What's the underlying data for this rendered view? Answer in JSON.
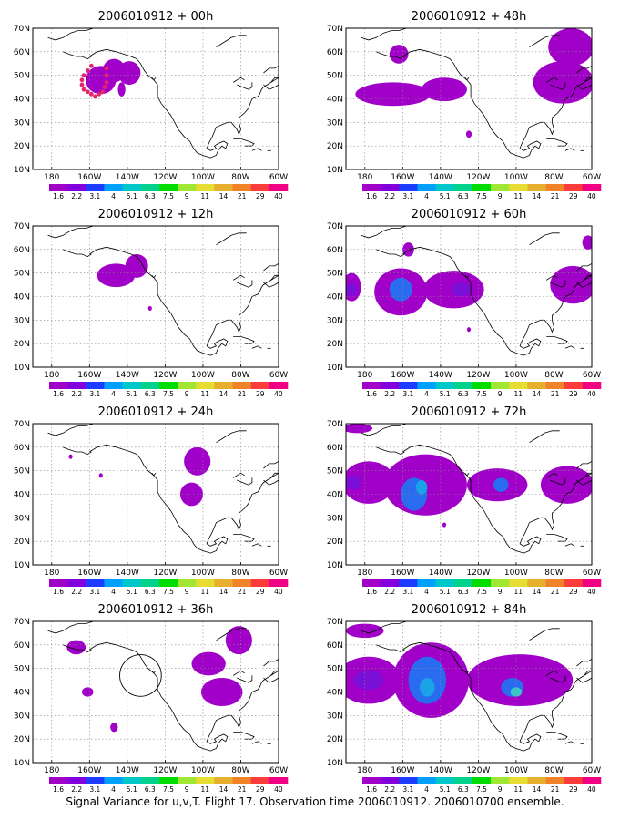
{
  "figure": {
    "caption": "Signal Variance for u,v,T. Flight 17. Observation time 2006010912. 2006010700 ensemble."
  },
  "colorbar": {
    "labels": [
      "1.6",
      "2.2",
      "3.1",
      "4",
      "5.1",
      "6.3",
      "7.5",
      "9",
      "11",
      "14",
      "21",
      "29",
      "40"
    ],
    "colors": [
      "#a000c8",
      "#8200dc",
      "#1e3cff",
      "#00a0ff",
      "#00c8c8",
      "#00d28c",
      "#00dc00",
      "#a0e632",
      "#e6dc32",
      "#e6af2d",
      "#f08228",
      "#fa3c3c",
      "#f00082"
    ]
  },
  "chart_data": [
    {
      "type": "heatmap",
      "title": "2006010912 + 00h",
      "xlim": [
        170,
        300
      ],
      "ylim": [
        10,
        70
      ],
      "x_ticks": [
        "180",
        "160W",
        "140W",
        "120W",
        "100W",
        "80W",
        "60W"
      ],
      "y_ticks": [
        "10N",
        "20N",
        "30N",
        "40N",
        "50N",
        "60N",
        "70N"
      ],
      "grid": true,
      "features": [
        {
          "lon": 206,
          "lat": 48,
          "rx": 8,
          "ry": 6,
          "level": 0
        },
        {
          "lon": 213,
          "lat": 52,
          "rx": 6,
          "ry": 5,
          "level": 0
        },
        {
          "lon": 221,
          "lat": 51,
          "rx": 6,
          "ry": 5,
          "level": 0
        },
        {
          "lon": 217,
          "lat": 44,
          "rx": 2,
          "ry": 3,
          "level": 0
        }
      ],
      "circles": [],
      "flight_track": [
        [
          201,
          54
        ],
        [
          199,
          52
        ],
        [
          197,
          50
        ],
        [
          196,
          48
        ],
        [
          196,
          46
        ],
        [
          197,
          44
        ],
        [
          199,
          43
        ],
        [
          201,
          42
        ],
        [
          203,
          41
        ],
        [
          205,
          42
        ],
        [
          207,
          43
        ],
        [
          208,
          45
        ],
        [
          209,
          47
        ],
        [
          209,
          50
        ],
        [
          209,
          53
        ]
      ]
    },
    {
      "type": "heatmap",
      "title": "2006010912 + 48h",
      "xlim": [
        170,
        300
      ],
      "ylim": [
        10,
        70
      ],
      "x_ticks": [
        "180",
        "160W",
        "140W",
        "120W",
        "100W",
        "80W",
        "60W"
      ],
      "y_ticks": [
        "10N",
        "20N",
        "30N",
        "40N",
        "50N",
        "60N",
        "70N"
      ],
      "grid": true,
      "features": [
        {
          "lon": 195,
          "lat": 42,
          "rx": 20,
          "ry": 5,
          "level": 0
        },
        {
          "lon": 222,
          "lat": 44,
          "rx": 12,
          "ry": 5,
          "level": 0
        },
        {
          "lon": 198,
          "lat": 59,
          "rx": 5,
          "ry": 4,
          "level": 0
        },
        {
          "lon": 235,
          "lat": 25,
          "rx": 1.5,
          "ry": 1.5,
          "level": 0
        },
        {
          "lon": 285,
          "lat": 47,
          "rx": 16,
          "ry": 9,
          "level": 0
        },
        {
          "lon": 289,
          "lat": 62,
          "rx": 12,
          "ry": 8,
          "level": 0
        }
      ],
      "circles": [],
      "flight_track": []
    },
    {
      "type": "heatmap",
      "title": "2006010912 + 12h",
      "xlim": [
        170,
        300
      ],
      "ylim": [
        10,
        70
      ],
      "x_ticks": [
        "180",
        "160W",
        "140W",
        "120W",
        "100W",
        "80W",
        "60W"
      ],
      "y_ticks": [
        "10N",
        "20N",
        "30N",
        "40N",
        "50N",
        "60N",
        "70N"
      ],
      "grid": true,
      "features": [
        {
          "lon": 214,
          "lat": 49,
          "rx": 10,
          "ry": 5,
          "level": 0
        },
        {
          "lon": 225,
          "lat": 53,
          "rx": 6,
          "ry": 5,
          "level": 0
        },
        {
          "lon": 232,
          "lat": 35,
          "rx": 1,
          "ry": 1,
          "level": 0
        }
      ],
      "circles": [],
      "flight_track": []
    },
    {
      "type": "heatmap",
      "title": "2006010912 + 60h",
      "xlim": [
        170,
        300
      ],
      "ylim": [
        10,
        70
      ],
      "x_ticks": [
        "180",
        "160W",
        "140W",
        "120W",
        "100W",
        "80W",
        "60W"
      ],
      "y_ticks": [
        "10N",
        "20N",
        "30N",
        "40N",
        "50N",
        "60N",
        "70N"
      ],
      "grid": true,
      "features": [
        {
          "lon": 199,
          "lat": 42,
          "rx": 14,
          "ry": 10,
          "level": 0
        },
        {
          "lon": 227,
          "lat": 43,
          "rx": 16,
          "ry": 8,
          "level": 0
        },
        {
          "lon": 173,
          "lat": 44,
          "rx": 5,
          "ry": 6,
          "level": 0
        },
        {
          "lon": 203,
          "lat": 60,
          "rx": 3,
          "ry": 3,
          "level": 0
        },
        {
          "lon": 290,
          "lat": 45,
          "rx": 12,
          "ry": 8,
          "level": 0
        },
        {
          "lon": 298,
          "lat": 63,
          "rx": 3,
          "ry": 3,
          "level": 0
        },
        {
          "lon": 235,
          "lat": 26,
          "rx": 1,
          "ry": 1,
          "level": 0
        },
        {
          "lon": 199,
          "lat": 43,
          "rx": 6,
          "ry": 5,
          "level": 2
        },
        {
          "lon": 173,
          "lat": 43,
          "rx": 3,
          "ry": 3,
          "level": 1
        },
        {
          "lon": 231,
          "lat": 43,
          "rx": 5,
          "ry": 3,
          "level": 1
        }
      ],
      "circles": [],
      "flight_track": []
    },
    {
      "type": "heatmap",
      "title": "2006010912 + 24h",
      "xlim": [
        170,
        300
      ],
      "ylim": [
        10,
        70
      ],
      "x_ticks": [
        "180",
        "160W",
        "140W",
        "120W",
        "100W",
        "80W",
        "60W"
      ],
      "y_ticks": [
        "10N",
        "20N",
        "30N",
        "40N",
        "50N",
        "60N",
        "70N"
      ],
      "grid": true,
      "features": [
        {
          "lon": 257,
          "lat": 54,
          "rx": 7,
          "ry": 6,
          "level": 0
        },
        {
          "lon": 254,
          "lat": 40,
          "rx": 6,
          "ry": 5,
          "level": 0
        },
        {
          "lon": 190,
          "lat": 56,
          "rx": 1,
          "ry": 1,
          "level": 0
        },
        {
          "lon": 206,
          "lat": 48,
          "rx": 1,
          "ry": 1,
          "level": 0
        }
      ],
      "circles": [],
      "flight_track": []
    },
    {
      "type": "heatmap",
      "title": "2006010912 + 72h",
      "xlim": [
        170,
        300
      ],
      "ylim": [
        10,
        70
      ],
      "x_ticks": [
        "180",
        "160W",
        "140W",
        "120W",
        "100W",
        "80W",
        "60W"
      ],
      "y_ticks": [
        "10N",
        "20N",
        "30N",
        "40N",
        "50N",
        "60N",
        "70N"
      ],
      "grid": true,
      "features": [
        {
          "lon": 182,
          "lat": 45,
          "rx": 14,
          "ry": 9,
          "level": 0
        },
        {
          "lon": 212,
          "lat": 44,
          "rx": 22,
          "ry": 13,
          "level": 0
        },
        {
          "lon": 250,
          "lat": 44,
          "rx": 16,
          "ry": 7,
          "level": 0
        },
        {
          "lon": 287,
          "lat": 44,
          "rx": 14,
          "ry": 8,
          "level": 0
        },
        {
          "lon": 176,
          "lat": 68,
          "rx": 8,
          "ry": 2,
          "level": 0
        },
        {
          "lon": 222,
          "lat": 27,
          "rx": 1,
          "ry": 1,
          "level": 0
        },
        {
          "lon": 206,
          "lat": 40,
          "rx": 7,
          "ry": 7,
          "level": 2
        },
        {
          "lon": 252,
          "lat": 44,
          "rx": 4,
          "ry": 3,
          "level": 2
        },
        {
          "lon": 174,
          "lat": 45,
          "rx": 4,
          "ry": 3,
          "level": 1
        },
        {
          "lon": 210,
          "lat": 43,
          "rx": 3,
          "ry": 3,
          "level": 3
        }
      ],
      "circles": [],
      "flight_track": []
    },
    {
      "type": "heatmap",
      "title": "2006010912 + 36h",
      "xlim": [
        170,
        300
      ],
      "ylim": [
        10,
        70
      ],
      "x_ticks": [
        "180",
        "160W",
        "140W",
        "120W",
        "100W",
        "80W",
        "60W"
      ],
      "y_ticks": [
        "10N",
        "20N",
        "30N",
        "40N",
        "50N",
        "60N",
        "70N"
      ],
      "grid": true,
      "features": [
        {
          "lon": 193,
          "lat": 59,
          "rx": 5,
          "ry": 3,
          "level": 0
        },
        {
          "lon": 199,
          "lat": 40,
          "rx": 3,
          "ry": 2,
          "level": 0
        },
        {
          "lon": 213,
          "lat": 25,
          "rx": 2,
          "ry": 2,
          "level": 0
        },
        {
          "lon": 270,
          "lat": 40,
          "rx": 11,
          "ry": 6,
          "level": 0
        },
        {
          "lon": 263,
          "lat": 52,
          "rx": 9,
          "ry": 5,
          "level": 0
        },
        {
          "lon": 279,
          "lat": 62,
          "rx": 7,
          "ry": 6,
          "level": 0
        }
      ],
      "circles": [
        {
          "lon": 227,
          "lat": 47,
          "r": 11
        }
      ],
      "flight_track": []
    },
    {
      "type": "heatmap",
      "title": "2006010912 + 84h",
      "xlim": [
        170,
        300
      ],
      "ylim": [
        10,
        70
      ],
      "x_ticks": [
        "180",
        "160W",
        "140W",
        "120W",
        "100W",
        "80W",
        "60W"
      ],
      "y_ticks": [
        "10N",
        "20N",
        "30N",
        "40N",
        "50N",
        "60N",
        "70N"
      ],
      "grid": true,
      "features": [
        {
          "lon": 182,
          "lat": 45,
          "rx": 17,
          "ry": 10,
          "level": 0
        },
        {
          "lon": 215,
          "lat": 45,
          "rx": 20,
          "ry": 16,
          "level": 0
        },
        {
          "lon": 262,
          "lat": 45,
          "rx": 28,
          "ry": 11,
          "level": 0
        },
        {
          "lon": 180,
          "lat": 66,
          "rx": 10,
          "ry": 3,
          "level": 0
        },
        {
          "lon": 182,
          "lat": 45,
          "rx": 8,
          "ry": 4,
          "level": 1
        },
        {
          "lon": 213,
          "lat": 45,
          "rx": 10,
          "ry": 10,
          "level": 2
        },
        {
          "lon": 258,
          "lat": 42,
          "rx": 6,
          "ry": 4,
          "level": 2
        },
        {
          "lon": 213,
          "lat": 42,
          "rx": 4,
          "ry": 4,
          "level": 3
        },
        {
          "lon": 260,
          "lat": 40,
          "rx": 3,
          "ry": 2,
          "level": 4
        }
      ],
      "circles": [],
      "flight_track": []
    }
  ]
}
